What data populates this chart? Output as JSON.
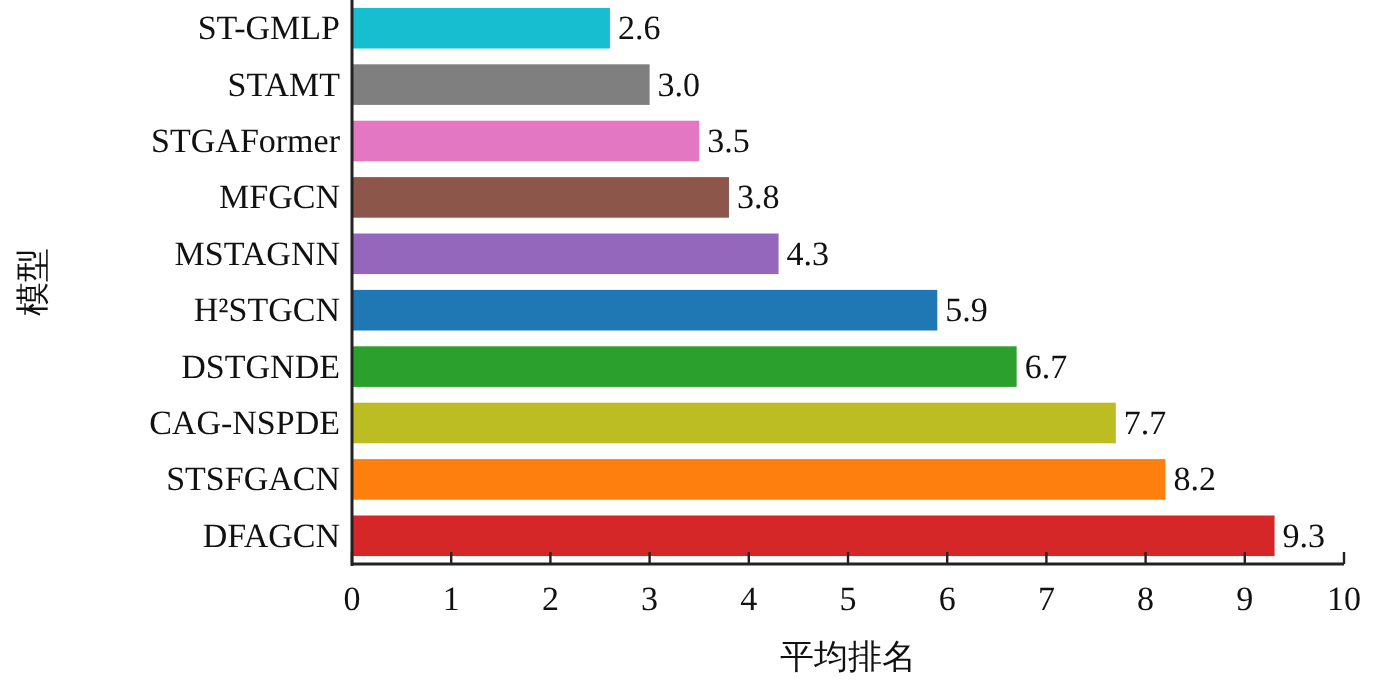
{
  "chart_data": {
    "type": "bar",
    "orientation": "horizontal",
    "xlabel": "平均排名",
    "ylabel": "模型",
    "categories": [
      "ST-GMLP",
      "STAMT",
      "STGAFormer",
      "MFGCN",
      "MSTAGNN",
      "H²STGCN",
      "DSTGNDE",
      "CAG-NSPDE",
      "STSFGACN",
      "DFAGCN"
    ],
    "values": [
      2.6,
      3.0,
      3.5,
      3.8,
      4.3,
      5.9,
      6.7,
      7.7,
      8.2,
      9.3
    ],
    "colors": [
      "#17becf",
      "#7f7f7f",
      "#e377c2",
      "#8c564b",
      "#9467bd",
      "#1f77b4",
      "#2ca02c",
      "#bcbd22",
      "#ff7f0e",
      "#d62728"
    ],
    "value_labels": [
      "2.6",
      "3.0",
      "3.5",
      "3.8",
      "4.3",
      "5.9",
      "6.7",
      "7.7",
      "8.2",
      "9.3"
    ],
    "xlim": [
      0,
      10
    ],
    "xticks": [
      0,
      1,
      2,
      3,
      4,
      5,
      6,
      7,
      8,
      9,
      10
    ],
    "grid": false
  }
}
